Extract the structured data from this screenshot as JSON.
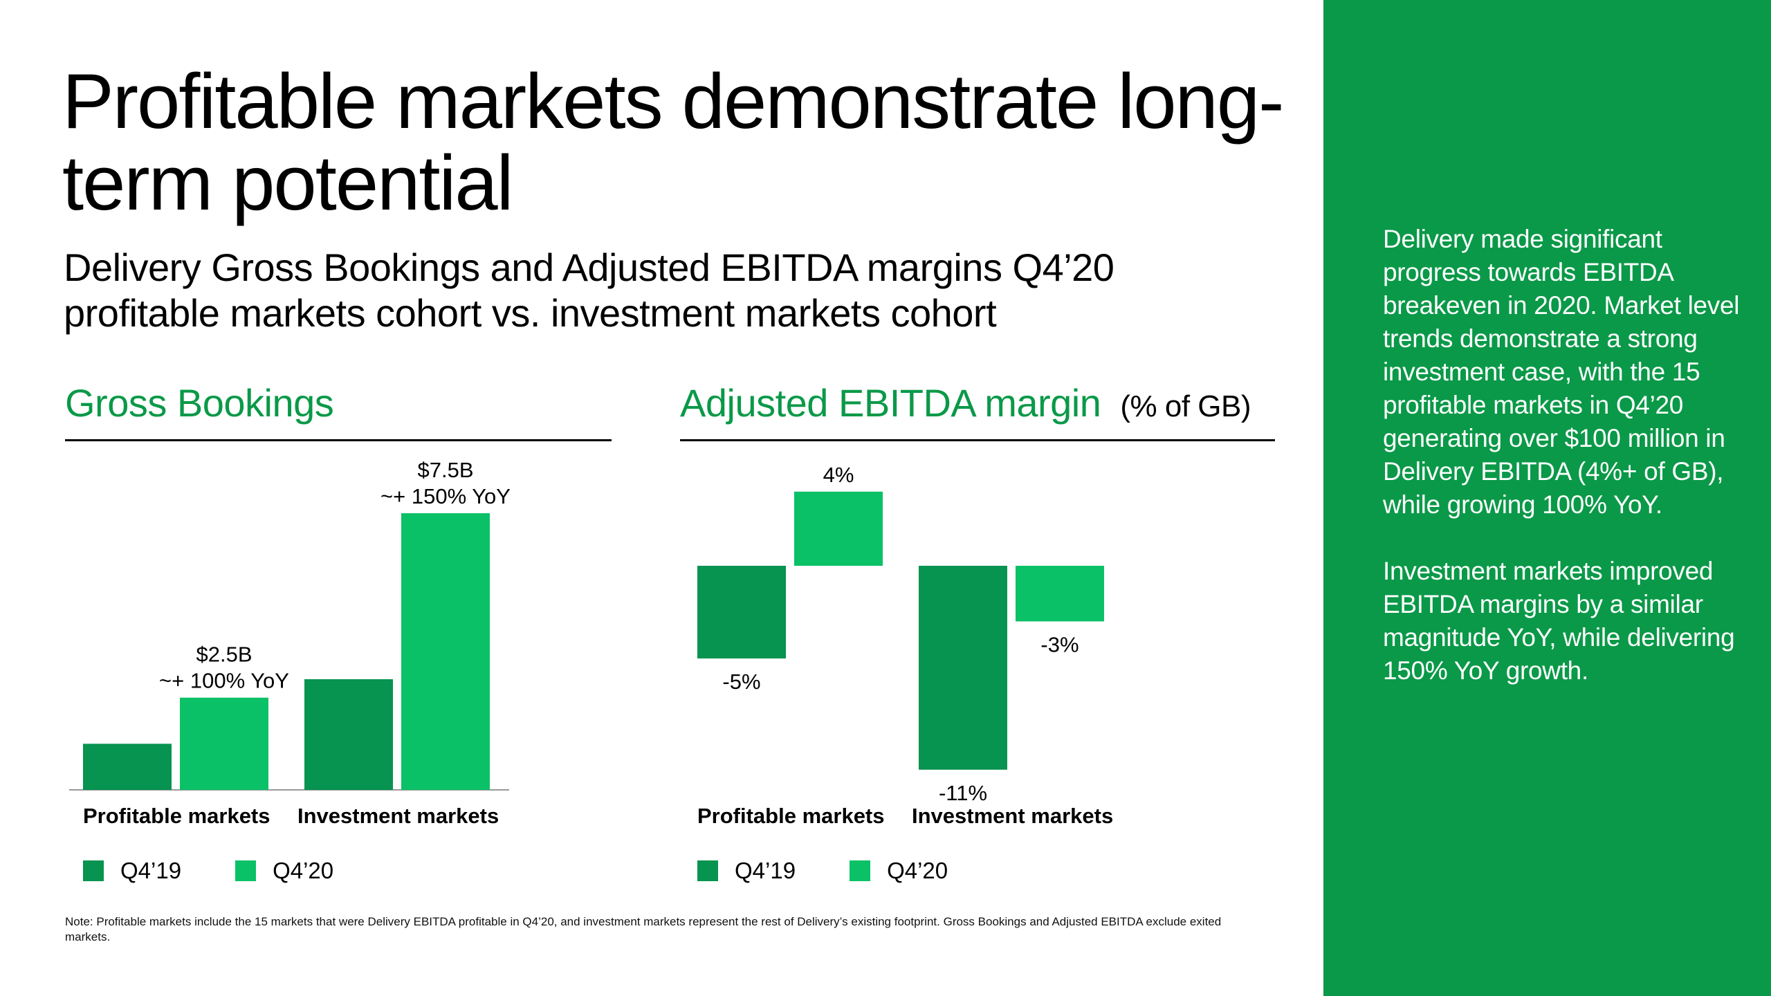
{
  "title": "Profitable markets demonstrate long-term potential",
  "subtitle": "Delivery Gross Bookings and Adjusted EBITDA margins Q4’20 profitable markets cohort vs. investment markets cohort",
  "colors": {
    "accent": "#0a9948",
    "q419": "#079350",
    "q420": "#0bc167",
    "sidebar": "#0a9948"
  },
  "gross_bookings": {
    "panel_title": "Gross Bookings",
    "categories": [
      "Profitable markets",
      "Investment markets"
    ],
    "legend": [
      "Q4’19",
      "Q4’20"
    ]
  },
  "ebitda": {
    "panel_title": "Adjusted EBITDA margin",
    "unit": "(% of GB)",
    "categories": [
      "Profitable markets",
      "Investment markets"
    ],
    "legend": [
      "Q4’19",
      "Q4’20"
    ]
  },
  "chart_data": [
    {
      "type": "bar",
      "title": "Gross Bookings",
      "categories": [
        "Profitable markets",
        "Investment markets"
      ],
      "series": [
        {
          "name": "Q4’19",
          "values": [
            1.25,
            3.0
          ]
        },
        {
          "name": "Q4’20",
          "values": [
            2.5,
            7.5
          ]
        }
      ],
      "annotations": [
        {
          "category": "Profitable markets",
          "series": "Q4’20",
          "lines": [
            "$2.5B",
            "~+ 100% YoY"
          ]
        },
        {
          "category": "Investment markets",
          "series": "Q4’20",
          "lines": [
            "$7.5B",
            "~+ 150% YoY"
          ]
        }
      ],
      "ylim": [
        0,
        7.5
      ],
      "xlabel": "",
      "ylabel": ""
    },
    {
      "type": "bar",
      "title": "Adjusted EBITDA margin (% of GB)",
      "categories": [
        "Profitable markets",
        "Investment markets"
      ],
      "series": [
        {
          "name": "Q4’19",
          "values": [
            -5,
            -11
          ],
          "labels": [
            "-5%",
            "-11%"
          ]
        },
        {
          "name": "Q4’20",
          "values": [
            4,
            -3
          ],
          "labels": [
            "4%",
            "-3%"
          ]
        }
      ],
      "ylim": [
        -11,
        4
      ],
      "xlabel": "",
      "ylabel": ""
    }
  ],
  "sidebar": {
    "paragraphs": [
      "Delivery made significant progress towards EBITDA breakeven in 2020. Market level trends demonstrate a strong investment case, with the 15 profitable markets in Q4’20 generating over $100 million in Delivery EBITDA (4%+ of GB), while growing 100% YoY.",
      "Investment markets improved EBITDA margins by a similar magnitude YoY, while delivering 150% YoY growth."
    ]
  },
  "note": "Note: Profitable markets include the 15 markets that were Delivery EBITDA profitable in Q4’20, and investment markets represent the rest of Delivery’s existing footprint. Gross Bookings and Adjusted EBITDA exclude exited markets."
}
